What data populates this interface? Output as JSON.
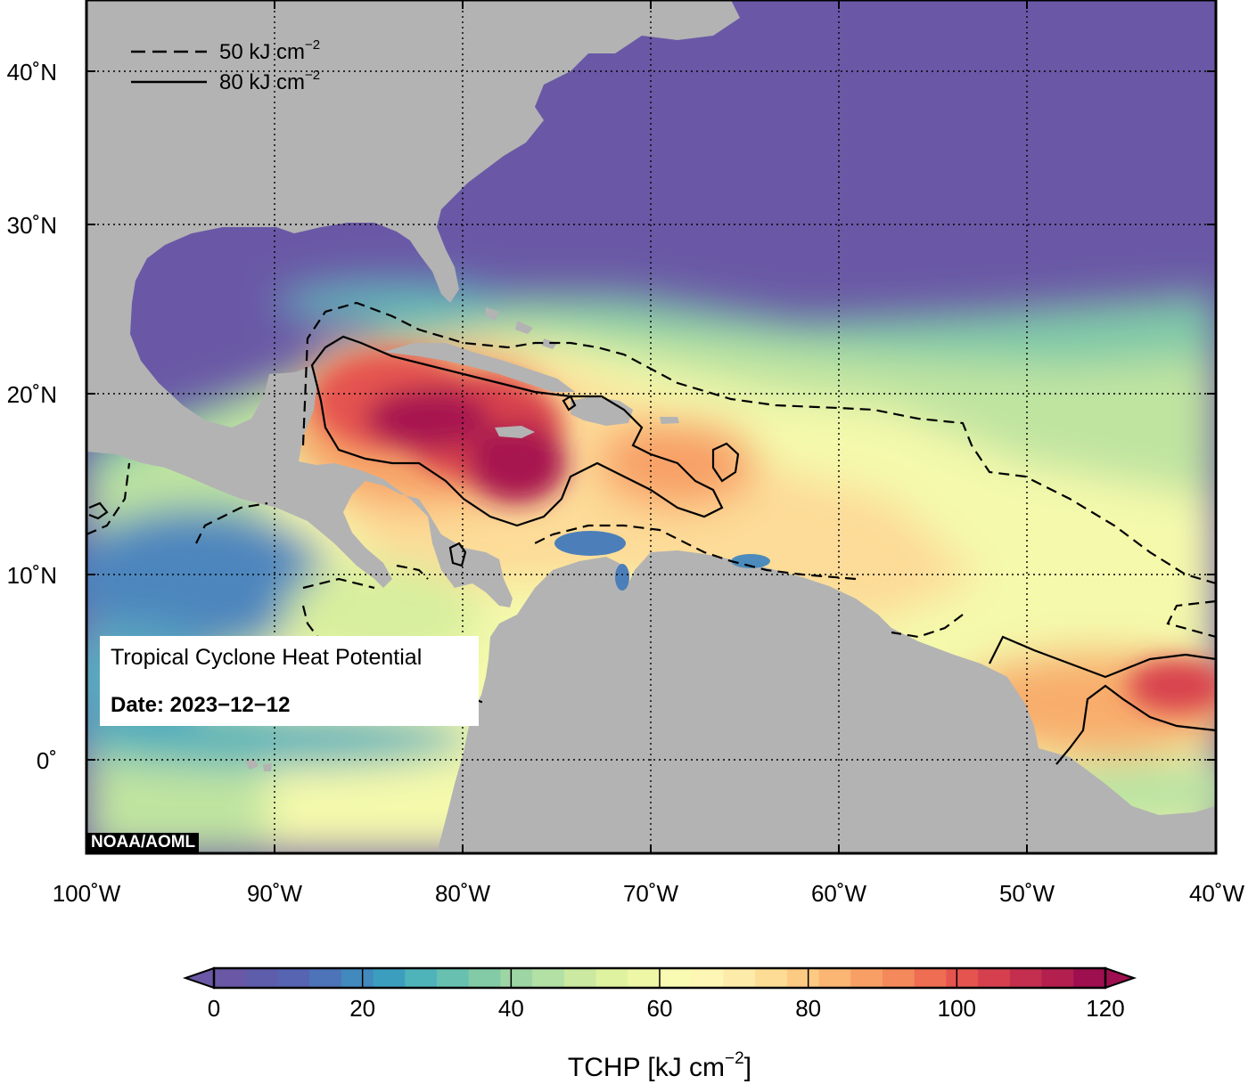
{
  "map": {
    "lon_labels": [
      "100˚W",
      "90˚W",
      "80˚W",
      "70˚W",
      "60˚W",
      "50˚W",
      "40˚W"
    ],
    "lat_labels": [
      "40˚N",
      "30˚N",
      "20˚N",
      "10˚N",
      "0˚"
    ],
    "lon_range": [
      -100,
      -40
    ],
    "lat_range": [
      -5,
      44
    ],
    "contours": {
      "dashed": {
        "label_prefix": "50 kJ cm",
        "label_sup": "−2",
        "value": 50
      },
      "solid": {
        "label_prefix": "80 kJ cm",
        "label_sup": "−2",
        "value": 80
      }
    },
    "land_color": "#b3b3b3",
    "cold_ocean_color": "#6a58a6"
  },
  "info": {
    "title": "Tropical Cyclone Heat Potential",
    "date": "Date: 2023−12−12"
  },
  "credit": "NOAA/AOML",
  "colorbar": {
    "ticks": [
      "0",
      "20",
      "40",
      "60",
      "80",
      "100",
      "120"
    ],
    "title_prefix": "TCHP [kJ cm",
    "title_sup": "−2",
    "title_suffix": "]",
    "range": [
      0,
      120
    ],
    "colors": [
      "#6a58a6",
      "#5e5dac",
      "#5664b2",
      "#4d74b8",
      "#4289be",
      "#3c9ebf",
      "#4fb3ba",
      "#68c1b0",
      "#83cba6",
      "#9dd6a4",
      "#b3e0a5",
      "#cbe9a1",
      "#dff2a0",
      "#eef7a6",
      "#f8fbb1",
      "#fdf6b4",
      "#fdebaa",
      "#fddc95",
      "#fdca83",
      "#fcb674",
      "#f89f66",
      "#f4895b",
      "#ee6d53",
      "#e5544f",
      "#d6404e",
      "#c42f4f",
      "#b31f4f",
      "#9e0f4f"
    ]
  }
}
